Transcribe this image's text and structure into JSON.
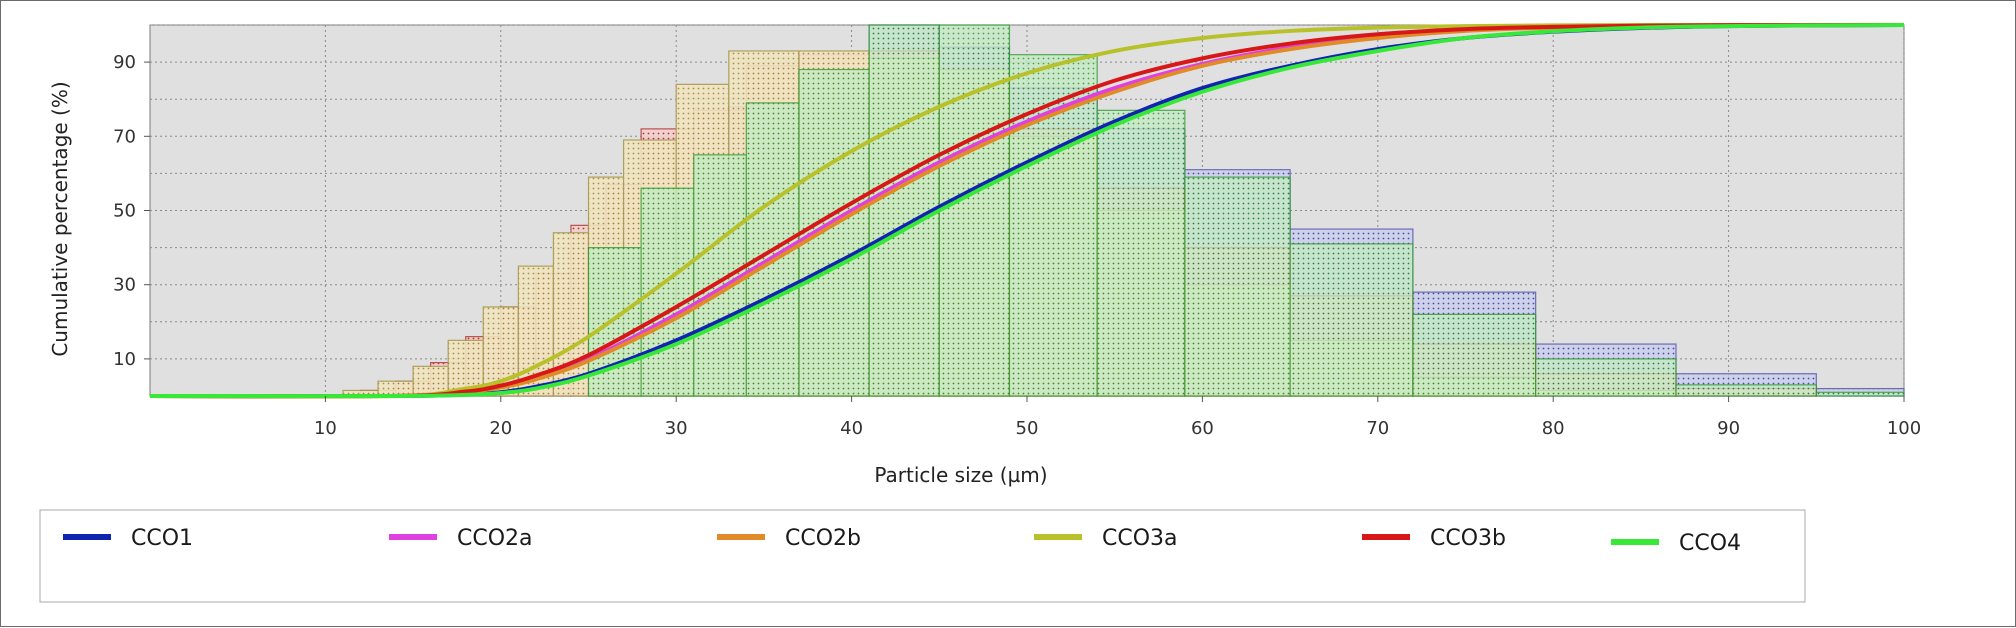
{
  "chart_data": {
    "type": "line",
    "title": "",
    "xlabel": "Particle size (µm)",
    "ylabel": "Cumulative percentage (%)",
    "xlim": [
      0,
      100
    ],
    "ylim": [
      0,
      100
    ],
    "x_ticks": [
      10,
      20,
      30,
      40,
      50,
      60,
      70,
      80,
      90,
      100
    ],
    "y_ticks": [
      10,
      30,
      50,
      70,
      90
    ],
    "grid": true,
    "legend_position": "bottom",
    "series": [
      {
        "name": "CCO1",
        "color": "#1024b0",
        "x": [
          0,
          14,
          18,
          20,
          22,
          25,
          30,
          35,
          40,
          45,
          50,
          55,
          60,
          65,
          70,
          75,
          80,
          85,
          90,
          95,
          100
        ],
        "values": [
          0,
          0,
          0.4,
          1,
          2.5,
          6,
          15,
          26,
          38,
          51,
          63,
          74,
          83,
          89,
          93.5,
          96.5,
          98.2,
          99.2,
          99.7,
          99.9,
          100
        ]
      },
      {
        "name": "CCO2a",
        "color": "#e040e0",
        "x": [
          0,
          14,
          18,
          20,
          22,
          25,
          30,
          35,
          40,
          45,
          50,
          55,
          60,
          65,
          70,
          75,
          80,
          85,
          90,
          95,
          100
        ],
        "values": [
          0,
          0,
          1,
          2.5,
          5,
          10,
          22,
          36,
          50,
          63,
          74,
          83,
          89.5,
          94,
          97,
          98.6,
          99.4,
          99.8,
          99.95,
          100,
          100
        ]
      },
      {
        "name": "CCO2b",
        "color": "#e08a28",
        "x": [
          0,
          14,
          18,
          20,
          22,
          25,
          30,
          35,
          40,
          45,
          50,
          55,
          60,
          65,
          70,
          75,
          80,
          85,
          90,
          95,
          100
        ],
        "values": [
          0,
          0,
          1,
          2.3,
          4.5,
          9.5,
          21,
          35,
          49,
          62,
          73,
          82,
          89,
          93.5,
          96.5,
          98.4,
          99.3,
          99.7,
          99.9,
          100,
          100
        ]
      },
      {
        "name": "CCO3a",
        "color": "#b8c02a",
        "x": [
          0,
          14,
          18,
          20,
          22,
          25,
          30,
          35,
          40,
          45,
          50,
          55,
          60,
          65,
          70,
          75,
          80,
          85,
          90,
          95,
          100
        ],
        "values": [
          0,
          0,
          2,
          4,
          8,
          16,
          33,
          51,
          66,
          78,
          87,
          93,
          96.5,
          98.4,
          99.3,
          99.7,
          99.9,
          100,
          100,
          100,
          100
        ]
      },
      {
        "name": "CCO3b",
        "color": "#d81818",
        "x": [
          0,
          14,
          18,
          20,
          22,
          25,
          30,
          35,
          40,
          45,
          50,
          55,
          60,
          65,
          70,
          75,
          80,
          85,
          90,
          95,
          100
        ],
        "values": [
          0,
          0,
          1.2,
          2.8,
          5.5,
          11,
          24,
          38,
          52,
          65,
          76,
          85,
          91,
          95,
          97.5,
          98.9,
          99.5,
          99.8,
          99.95,
          100,
          100
        ]
      },
      {
        "name": "CCO4",
        "color": "#38e838",
        "x": [
          0,
          14,
          18,
          20,
          22,
          25,
          30,
          35,
          40,
          45,
          50,
          55,
          60,
          65,
          70,
          75,
          80,
          85,
          90,
          95,
          100
        ],
        "values": [
          0,
          0,
          0.3,
          0.8,
          2,
          5.5,
          14,
          25,
          37,
          50,
          62,
          73,
          82,
          88.5,
          93,
          96.5,
          98.3,
          99.3,
          99.7,
          99.9,
          100
        ]
      }
    ],
    "histograms": [
      {
        "series": "CCO1",
        "fill": "#c8cce8",
        "stroke": "#6060b0",
        "bins": [
          [
            12,
            14,
            0.5
          ],
          [
            14,
            16,
            1.5
          ],
          [
            16,
            18,
            3
          ],
          [
            18,
            20,
            5
          ],
          [
            20,
            22,
            8
          ],
          [
            22,
            24,
            13
          ],
          [
            24,
            27,
            20
          ],
          [
            27,
            30,
            34
          ],
          [
            30,
            33,
            54
          ],
          [
            33,
            37,
            78
          ],
          [
            37,
            41,
            91
          ],
          [
            41,
            45,
            100
          ],
          [
            45,
            49,
            94
          ],
          [
            49,
            54,
            83
          ],
          [
            54,
            59,
            72
          ],
          [
            59,
            65,
            61
          ],
          [
            65,
            72,
            45
          ],
          [
            72,
            79,
            28
          ],
          [
            79,
            87,
            14
          ],
          [
            87,
            95,
            6
          ],
          [
            95,
            100,
            2
          ]
        ]
      },
      {
        "series": "CCO3b",
        "fill": "#f0c8c8",
        "stroke": "#b84040",
        "bins": [
          [
            12,
            14,
            1.5
          ],
          [
            14,
            16,
            4
          ],
          [
            16,
            18,
            9
          ],
          [
            18,
            20,
            16
          ],
          [
            20,
            22,
            24
          ],
          [
            22,
            24,
            33
          ],
          [
            24,
            26,
            46
          ],
          [
            26,
            28,
            57
          ],
          [
            28,
            31,
            72
          ],
          [
            31,
            34,
            77
          ],
          [
            34,
            37,
            89
          ],
          [
            37,
            41,
            92
          ],
          [
            41,
            45,
            93
          ],
          [
            45,
            49,
            84
          ],
          [
            49,
            54,
            72
          ],
          [
            54,
            59,
            56
          ],
          [
            59,
            65,
            40
          ],
          [
            65,
            72,
            27
          ],
          [
            72,
            79,
            14
          ],
          [
            79,
            87,
            6
          ],
          [
            87,
            95,
            2
          ]
        ]
      },
      {
        "series": "CCO3a",
        "fill": "#efe0b8",
        "stroke": "#a89a50",
        "bins": [
          [
            11,
            13,
            1.5
          ],
          [
            13,
            15,
            4
          ],
          [
            15,
            17,
            8
          ],
          [
            17,
            19,
            15
          ],
          [
            19,
            21,
            24
          ],
          [
            21,
            23,
            35
          ],
          [
            23,
            25,
            44
          ],
          [
            25,
            27,
            59
          ],
          [
            27,
            30,
            69
          ],
          [
            30,
            33,
            84
          ],
          [
            33,
            37,
            93
          ],
          [
            37,
            41,
            93
          ],
          [
            41,
            45,
            91
          ],
          [
            45,
            49,
            88
          ],
          [
            49,
            54,
            70
          ],
          [
            54,
            59,
            50
          ],
          [
            59,
            65,
            30
          ],
          [
            65,
            72,
            15
          ],
          [
            72,
            79,
            5
          ],
          [
            79,
            87,
            1.5
          ]
        ]
      },
      {
        "series": "CCO4",
        "fill": "#bfe8bf",
        "stroke": "#2a9a2a",
        "bins": [
          [
            25,
            28,
            40
          ],
          [
            28,
            31,
            56
          ],
          [
            31,
            34,
            65
          ],
          [
            34,
            37,
            79
          ],
          [
            37,
            41,
            88
          ],
          [
            41,
            45,
            100
          ],
          [
            45,
            49,
            100
          ],
          [
            49,
            54,
            92
          ],
          [
            54,
            59,
            77
          ],
          [
            59,
            65,
            59
          ],
          [
            65,
            72,
            41
          ],
          [
            72,
            79,
            22
          ],
          [
            79,
            87,
            10
          ],
          [
            87,
            95,
            3
          ],
          [
            95,
            100,
            1
          ]
        ]
      }
    ]
  }
}
